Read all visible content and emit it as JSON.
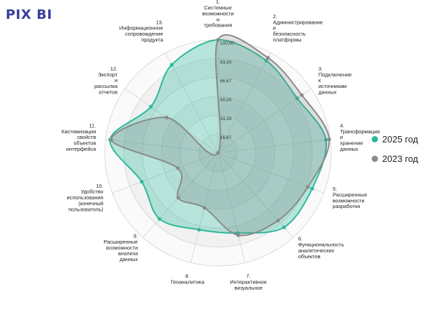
{
  "header": {
    "brand": "PIX BI"
  },
  "chart_data": {
    "type": "radar",
    "title": "",
    "categories": [
      "1.\nСистемные\nвозможности\nи\nтребования",
      "2.\nАдминистрирование\nи\nбезопасность\nплатформы",
      "3.\nПодключение\nк\nисточникам\nданных",
      "4.\nТрансформация\nи\nхранение\nданных",
      "5.\nРасширенные\nвозможности\nразработки",
      "6.\nФункциональность\nаналитических\nобъектов",
      "7.\nИнтерактивное\nвизуальное",
      "8.\nГеоаналитика",
      "9.\nРасширенные\nвозможности\nанализа\nданных",
      "10.\nУдобство\nиспользования\n(конечный\nпользователь)",
      "11.\nКастомизация\nсвойств\nобъектов\nинтерфейса",
      "12.\nЭкспорт\nи\nрассылка\nотчетов",
      "13.\nИнформационное\nсопровождение\nпродукта"
    ],
    "radial_ticks": [
      "16,67",
      "33,33",
      "50,00",
      "66,67",
      "83,33",
      "100,00"
    ],
    "rlim": [
      0,
      100
    ],
    "series": [
      {
        "name": "2025 год",
        "color": "#2db89a",
        "fill": "rgba(45,184,154,0.32)",
        "values": [
          100,
          92,
          85,
          96,
          89,
          88,
          73,
          70,
          78,
          72,
          96,
          72,
          88
        ]
      },
      {
        "name": "2023 год",
        "color": "#8a8a8a",
        "fill": "rgba(110,110,110,0.20)",
        "values": [
          100,
          95,
          90,
          99,
          85,
          80,
          75,
          50,
          53,
          38,
          95,
          55,
          0
        ]
      }
    ]
  }
}
